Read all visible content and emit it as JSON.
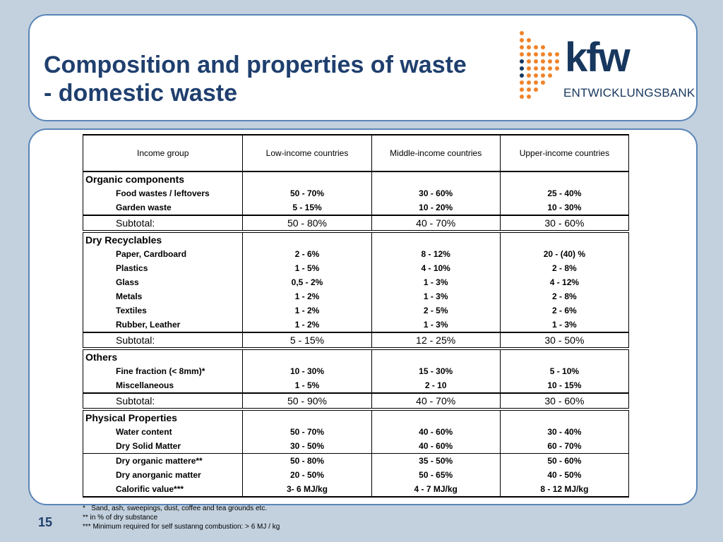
{
  "slide": {
    "title_line1": "Composition and properties of waste",
    "title_line2": "- domestic waste",
    "page_number": "15"
  },
  "logo": {
    "text": "kfw",
    "subtitle": "ENTWICKLUNGSBANK",
    "dot_color_orange": "#f0832a",
    "dot_color_blue": "#17375e"
  },
  "table": {
    "header": [
      "Income group",
      "Low-income countries",
      "Middle-income countries",
      "Upper-income countries"
    ],
    "organic": {
      "title": "Organic components",
      "rows": [
        [
          "Food wastes / leftovers",
          "50 - 70%",
          "30 - 60%",
          "25 - 40%"
        ],
        [
          "Garden waste",
          "5 - 15%",
          "10 - 20%",
          "10 - 30%"
        ]
      ],
      "subtotal": [
        "Subtotal:",
        "50 - 80%",
        "40 - 70%",
        "30 - 60%"
      ]
    },
    "dry": {
      "title": "Dry Recyclables",
      "rows": [
        [
          "Paper, Cardboard",
          "2 - 6%",
          "8 - 12%",
          "20 - (40) %"
        ],
        [
          "Plastics",
          "1 - 5%",
          "4 - 10%",
          "2 - 8%"
        ],
        [
          "Glass",
          "0,5 -  2%",
          "1 -  3%",
          "4 - 12%"
        ],
        [
          "Metals",
          "1 -  2%",
          "1 -  3%",
          "2 - 8%"
        ],
        [
          "Textiles",
          "1 - 2%",
          "2 -  5%",
          "2 - 6%"
        ],
        [
          "Rubber, Leather",
          "1 - 2%",
          "1 -  3%",
          "1 - 3%"
        ]
      ],
      "subtotal": [
        "Subtotal:",
        "5 - 15%",
        "12 - 25%",
        "30 - 50%"
      ]
    },
    "others": {
      "title": "Others",
      "rows": [
        [
          "Fine fraction (< 8mm)*",
          "10 - 30%",
          "15 - 30%",
          "5 - 10%"
        ],
        [
          "Miscellaneous",
          "1 - 5%",
          "2 - 10",
          "10 - 15%"
        ]
      ],
      "subtotal": [
        "Subtotal:",
        "50 - 90%",
        "40 - 70%",
        "30 - 60%"
      ]
    },
    "physical": {
      "title": "Physical Properties",
      "rows": [
        [
          "Water content",
          "50 - 70%",
          "40 - 60%",
          "30 - 40%"
        ],
        [
          "Dry  Solid Matter",
          "30 - 50%",
          "40 - 60%",
          "60 - 70%"
        ],
        [
          "Dry organic mattere**",
          "50 - 80%",
          "35 - 50%",
          "50 - 60%"
        ],
        [
          "Dry anorganic matter",
          "20 - 50%",
          "50 - 65%",
          "40 - 50%"
        ],
        [
          "Calorific value***",
          "3- 6 MJ/kg",
          "4 - 7 MJ/kg",
          "8 - 12 MJ/kg"
        ]
      ]
    }
  },
  "footnotes": [
    "*   Sand, ash, sweepings, dust, coffee and tea grounds etc.",
    "** in % of dry substance",
    "*** Minimum required for self sustanng combustion: > 6 MJ / kg"
  ]
}
